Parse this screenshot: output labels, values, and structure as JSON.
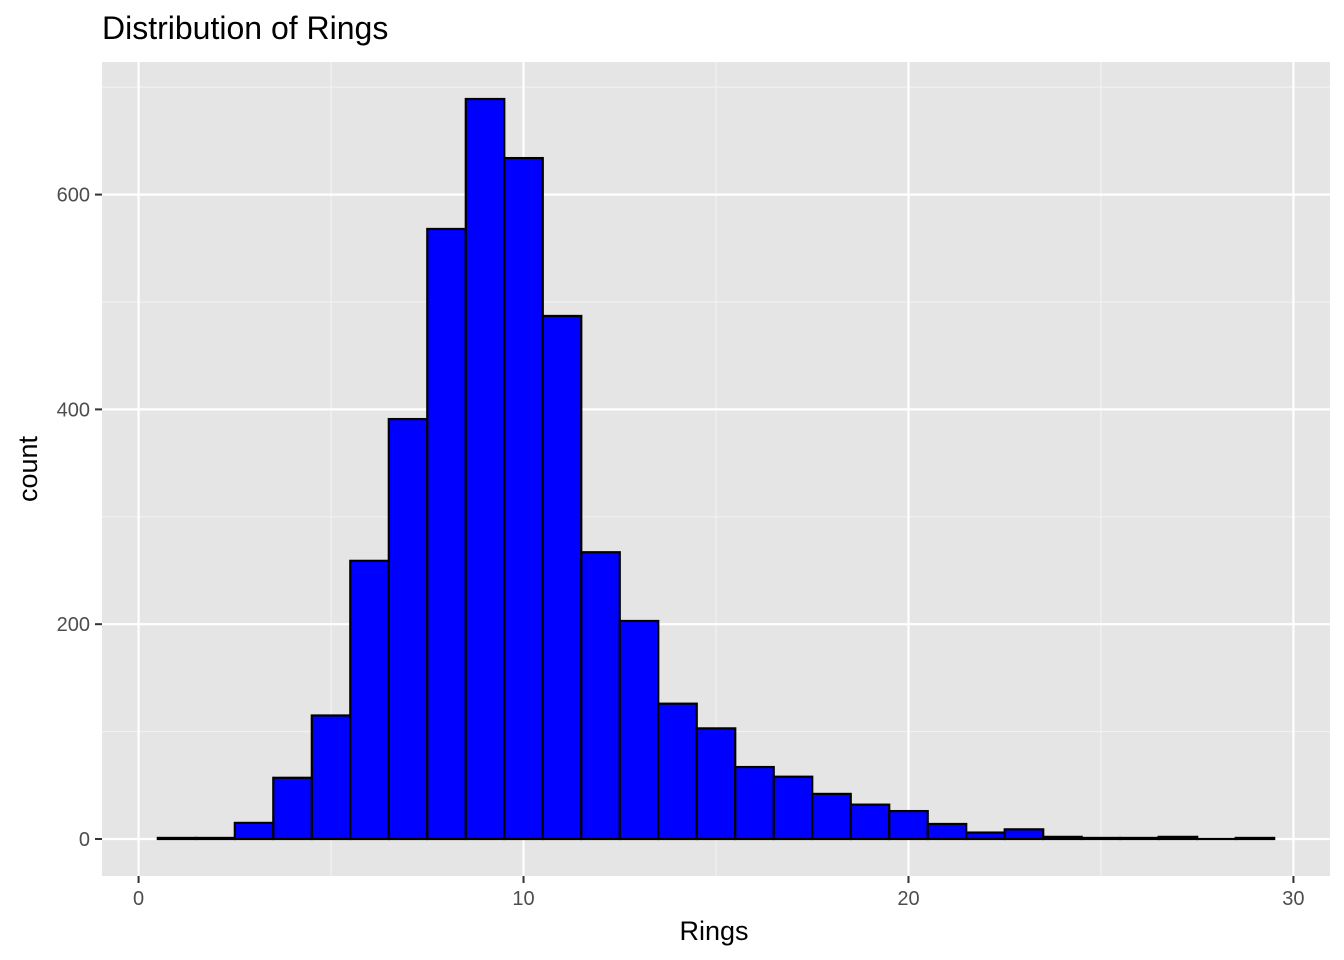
{
  "chart_data": {
    "type": "bar",
    "title": "Distribution of Rings",
    "xlabel": "Rings",
    "ylabel": "count",
    "bin_width": 1,
    "x": [
      1,
      2,
      3,
      4,
      5,
      6,
      7,
      8,
      9,
      10,
      11,
      12,
      13,
      14,
      15,
      16,
      17,
      18,
      19,
      20,
      21,
      22,
      23,
      24,
      25,
      26,
      27,
      28,
      29
    ],
    "values": [
      1,
      1,
      15,
      57,
      115,
      259,
      391,
      568,
      689,
      634,
      487,
      267,
      203,
      126,
      103,
      67,
      58,
      42,
      32,
      26,
      14,
      6,
      9,
      2,
      1,
      1,
      2,
      0,
      1
    ],
    "xlim": [
      -0.95,
      30.95
    ],
    "ylim": [
      -34.45,
      723.45
    ],
    "x_ticks": [
      0,
      10,
      20,
      30
    ],
    "x_tick_labels": [
      "0",
      "10",
      "20",
      "30"
    ],
    "y_ticks": [
      0,
      200,
      400,
      600
    ],
    "y_tick_labels": [
      "0",
      "200",
      "400",
      "600"
    ],
    "grid": true,
    "legend": "none",
    "colors": {
      "bar_fill": "#0000ff",
      "bar_outline": "#000000",
      "panel_background": "#e5e5e5",
      "grid_major": "#ffffff",
      "grid_minor": "#f2f2f2",
      "tick_label": "#4d4d4d"
    }
  }
}
